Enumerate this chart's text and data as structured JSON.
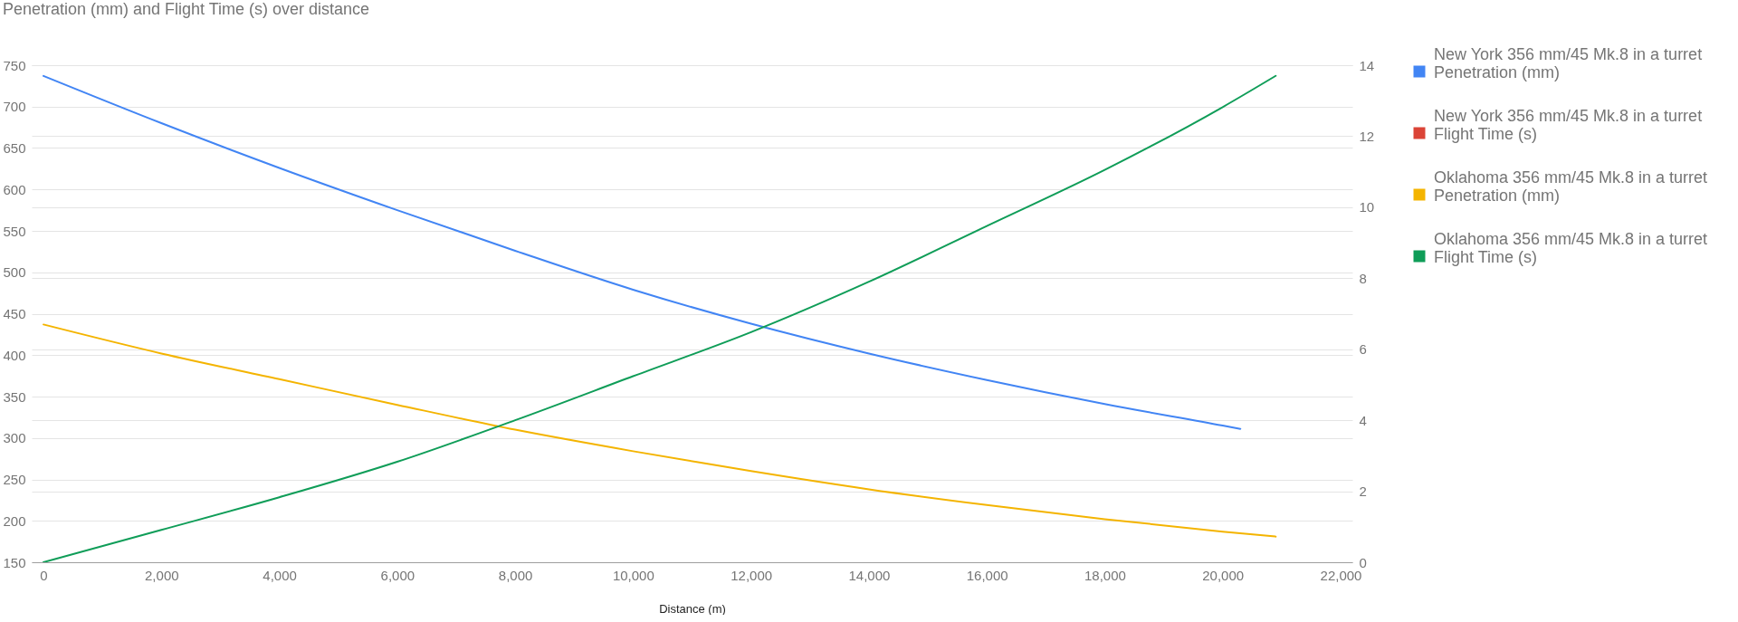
{
  "chart_data": {
    "type": "line",
    "title": "Penetration (mm) and Flight Time (s) over distance",
    "xlabel": "Distance (m)",
    "xlim": [
      -200,
      22200
    ],
    "xticks": [
      0,
      {
        "value": 2000,
        "label": "2,000"
      },
      {
        "value": 4000,
        "label": "4,000"
      },
      {
        "value": 6000,
        "label": "6,000"
      },
      {
        "value": 8000,
        "label": "8,000"
      },
      {
        "value": 10000,
        "label": "10,000"
      },
      {
        "value": 12000,
        "label": "12,000"
      },
      {
        "value": 14000,
        "label": "14,000"
      },
      {
        "value": 16000,
        "label": "16,000"
      },
      {
        "value": 18000,
        "label": "18,000"
      },
      {
        "value": 20000,
        "label": "20,000"
      },
      {
        "value": 22000,
        "label": "22,000"
      }
    ],
    "ylim": [
      150,
      750
    ],
    "yticks": [
      150,
      200,
      250,
      300,
      350,
      400,
      450,
      500,
      550,
      600,
      650,
      700,
      750
    ],
    "y2lim": [
      0,
      14
    ],
    "y2ticks": [
      0,
      2,
      4,
      6,
      8,
      10,
      12,
      14
    ],
    "grid": "y",
    "legend": "right",
    "series": [
      {
        "name": "New York 356 mm/45 Mk.8 in a turret\nPenetration (mm)",
        "color": "#4285f4",
        "x": [
          0,
          2000,
          4000,
          6000,
          8000,
          10000,
          12000,
          14000,
          16000,
          18000,
          20000,
          20300
        ],
        "values": [
          737,
          680,
          626,
          575,
          526,
          479,
          438,
          402,
          370,
          341,
          315,
          311
        ]
      },
      {
        "name": "New York 356 mm/45 Mk.8 in a turret\nFlight Time (s)",
        "color": "#db4437"
      },
      {
        "name": "Oklahoma 356 mm/45 Mk.8 in a turret\nPenetration (mm)",
        "color": "#f4b400",
        "x": [
          0,
          2000,
          4000,
          6000,
          8000,
          10000,
          12000,
          14000,
          16000,
          18000,
          20000,
          20900
        ],
        "values": [
          437,
          402,
          371,
          340,
          310,
          284,
          260,
          238,
          219,
          202,
          187,
          181
        ]
      },
      {
        "name": "Oklahoma 356 mm/45 Mk.8 in a turret\nFlight Time (s)",
        "color": "#0f9d58",
        "axis": "y2",
        "x": [
          0,
          2000,
          4000,
          6000,
          8000,
          10000,
          12000,
          14000,
          16000,
          18000,
          20000,
          20900
        ],
        "values": [
          0,
          0.91,
          1.83,
          2.83,
          4.0,
          5.24,
          6.48,
          7.9,
          9.47,
          11.05,
          12.82,
          13.7
        ]
      }
    ]
  }
}
